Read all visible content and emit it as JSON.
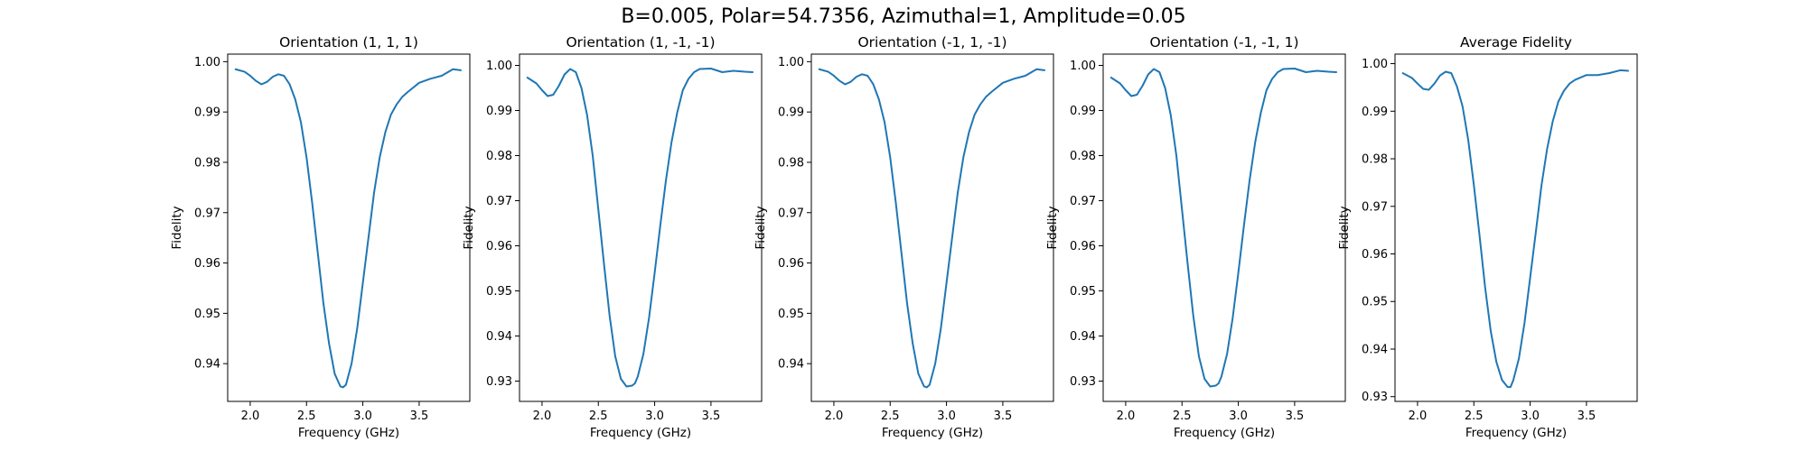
{
  "figure": {
    "suptitle": "B=0.005, Polar=54.7356, Azimuthal=1, Amplitude=0.05",
    "line_color": "#1f77b4"
  },
  "chart_data": [
    {
      "type": "line",
      "title": "Orientation (1, 1, 1)",
      "xlabel": "Frequency (GHz)",
      "ylabel": "Fidelity",
      "xlim": [
        1.8,
        3.95
      ],
      "ylim": [
        0.9325,
        1.0015
      ],
      "xticks": [
        2.0,
        2.5,
        3.0,
        3.5
      ],
      "xticklabels": [
        "2.0",
        "2.5",
        "3.0",
        "3.5"
      ],
      "yticks": [
        0.94,
        0.95,
        0.96,
        0.97,
        0.98,
        0.99,
        1.0
      ],
      "yticklabels": [
        "0.94",
        "0.95",
        "0.96",
        "0.97",
        "0.98",
        "0.99",
        "1.00"
      ],
      "series": [
        {
          "x": [
            1.87,
            1.95,
            2.0,
            2.05,
            2.1,
            2.15,
            2.2,
            2.25,
            2.3,
            2.35,
            2.4,
            2.45,
            2.5,
            2.55,
            2.6,
            2.65,
            2.7,
            2.75,
            2.8,
            2.825,
            2.85,
            2.9,
            2.95,
            3.0,
            3.05,
            3.1,
            3.15,
            3.2,
            3.25,
            3.3,
            3.35,
            3.4,
            3.5,
            3.6,
            3.7,
            3.8,
            3.87
          ],
          "y": [
            0.9985,
            0.998,
            0.9972,
            0.9962,
            0.9955,
            0.996,
            0.997,
            0.9975,
            0.9972,
            0.9955,
            0.9925,
            0.988,
            0.981,
            0.972,
            0.962,
            0.952,
            0.944,
            0.938,
            0.9355,
            0.9353,
            0.9358,
            0.94,
            0.947,
            0.956,
            0.965,
            0.974,
            0.981,
            0.986,
            0.9895,
            0.9915,
            0.993,
            0.994,
            0.9958,
            0.9966,
            0.9972,
            0.9985,
            0.9983
          ]
        }
      ]
    },
    {
      "type": "line",
      "title": "Orientation (1, -1, -1)",
      "xlabel": "Frequency (GHz)",
      "ylabel": "Fidelity",
      "xlim": [
        1.8,
        3.95
      ],
      "ylim": [
        0.9255,
        1.0025
      ],
      "xticks": [
        2.0,
        2.5,
        3.0,
        3.5
      ],
      "xticklabels": [
        "2.0",
        "2.5",
        "3.0",
        "3.5"
      ],
      "yticks": [
        0.93,
        0.94,
        0.95,
        0.96,
        0.97,
        0.98,
        0.99,
        1.0
      ],
      "yticklabels": [
        "0.93",
        "0.94",
        "0.95",
        "0.96",
        "0.97",
        "0.98",
        "0.99",
        "1.00"
      ],
      "series": [
        {
          "x": [
            1.87,
            1.95,
            2.0,
            2.05,
            2.1,
            2.15,
            2.2,
            2.25,
            2.3,
            2.35,
            2.4,
            2.45,
            2.5,
            2.55,
            2.6,
            2.65,
            2.7,
            2.75,
            2.8,
            2.825,
            2.85,
            2.9,
            2.95,
            3.0,
            3.05,
            3.1,
            3.15,
            3.2,
            3.25,
            3.3,
            3.35,
            3.4,
            3.5,
            3.6,
            3.7,
            3.8,
            3.87
          ],
          "y": [
            0.9973,
            0.996,
            0.9945,
            0.9932,
            0.9935,
            0.9955,
            0.998,
            0.9992,
            0.9985,
            0.995,
            0.989,
            0.98,
            0.968,
            0.956,
            0.9445,
            0.9355,
            0.9305,
            0.9288,
            0.929,
            0.9295,
            0.931,
            0.936,
            0.944,
            0.954,
            0.9645,
            0.9745,
            0.983,
            0.9895,
            0.9945,
            0.997,
            0.9985,
            0.9992,
            0.9993,
            0.9985,
            0.9988,
            0.9986,
            0.9985
          ]
        }
      ]
    },
    {
      "type": "line",
      "title": "Orientation (-1, 1, -1)",
      "xlabel": "Frequency (GHz)",
      "ylabel": "Fidelity",
      "xlim": [
        1.8,
        3.95
      ],
      "ylim": [
        0.9325,
        1.0015
      ],
      "xticks": [
        2.0,
        2.5,
        3.0,
        3.5
      ],
      "xticklabels": [
        "2.0",
        "2.5",
        "3.0",
        "3.5"
      ],
      "yticks": [
        0.94,
        0.95,
        0.96,
        0.97,
        0.98,
        0.99,
        1.0
      ],
      "yticklabels": [
        "0.94",
        "0.95",
        "0.96",
        "0.97",
        "0.98",
        "0.99",
        "1.00"
      ],
      "series": [
        {
          "x": [
            1.87,
            1.95,
            2.0,
            2.05,
            2.1,
            2.15,
            2.2,
            2.25,
            2.3,
            2.35,
            2.4,
            2.45,
            2.5,
            2.55,
            2.6,
            2.65,
            2.7,
            2.75,
            2.8,
            2.825,
            2.85,
            2.9,
            2.95,
            3.0,
            3.05,
            3.1,
            3.15,
            3.2,
            3.25,
            3.3,
            3.35,
            3.4,
            3.5,
            3.6,
            3.7,
            3.8,
            3.87
          ],
          "y": [
            0.9985,
            0.998,
            0.9972,
            0.9962,
            0.9955,
            0.996,
            0.997,
            0.9975,
            0.9972,
            0.9955,
            0.9925,
            0.988,
            0.981,
            0.972,
            0.962,
            0.952,
            0.944,
            0.938,
            0.9355,
            0.9353,
            0.9358,
            0.94,
            0.947,
            0.956,
            0.965,
            0.974,
            0.981,
            0.986,
            0.9895,
            0.9915,
            0.993,
            0.994,
            0.9958,
            0.9966,
            0.9972,
            0.9985,
            0.9983
          ]
        }
      ]
    },
    {
      "type": "line",
      "title": "Orientation (-1, -1, 1)",
      "xlabel": "Frequency (GHz)",
      "ylabel": "Fidelity",
      "xlim": [
        1.8,
        3.95
      ],
      "ylim": [
        0.9255,
        1.0025
      ],
      "xticks": [
        2.0,
        2.5,
        3.0,
        3.5
      ],
      "xticklabels": [
        "2.0",
        "2.5",
        "3.0",
        "3.5"
      ],
      "yticks": [
        0.93,
        0.94,
        0.95,
        0.96,
        0.97,
        0.98,
        0.99,
        1.0
      ],
      "yticklabels": [
        "0.93",
        "0.94",
        "0.95",
        "0.96",
        "0.97",
        "0.98",
        "0.99",
        "1.00"
      ],
      "series": [
        {
          "x": [
            1.87,
            1.95,
            2.0,
            2.05,
            2.1,
            2.15,
            2.2,
            2.25,
            2.3,
            2.35,
            2.4,
            2.45,
            2.5,
            2.55,
            2.6,
            2.65,
            2.7,
            2.75,
            2.8,
            2.825,
            2.85,
            2.9,
            2.95,
            3.0,
            3.05,
            3.1,
            3.15,
            3.2,
            3.25,
            3.3,
            3.35,
            3.4,
            3.5,
            3.6,
            3.7,
            3.8,
            3.87
          ],
          "y": [
            0.9973,
            0.996,
            0.9945,
            0.9932,
            0.9935,
            0.9955,
            0.998,
            0.9992,
            0.9985,
            0.995,
            0.989,
            0.98,
            0.968,
            0.956,
            0.9445,
            0.9355,
            0.9305,
            0.9288,
            0.929,
            0.9295,
            0.931,
            0.936,
            0.944,
            0.954,
            0.9645,
            0.9745,
            0.983,
            0.9895,
            0.9945,
            0.997,
            0.9985,
            0.9992,
            0.9993,
            0.9985,
            0.9988,
            0.9986,
            0.9985
          ]
        }
      ]
    },
    {
      "type": "line",
      "title": "Average Fidelity",
      "xlabel": "Frequency (GHz)",
      "ylabel": "Fidelity",
      "xlim": [
        1.8,
        3.95
      ],
      "ylim": [
        0.929,
        1.002
      ],
      "xticks": [
        2.0,
        2.5,
        3.0,
        3.5
      ],
      "xticklabels": [
        "2.0",
        "2.5",
        "3.0",
        "3.5"
      ],
      "yticks": [
        0.93,
        0.94,
        0.95,
        0.96,
        0.97,
        0.98,
        0.99,
        1.0
      ],
      "yticklabels": [
        "0.93",
        "0.94",
        "0.95",
        "0.96",
        "0.97",
        "0.98",
        "0.99",
        "1.00"
      ],
      "series": [
        {
          "x": [
            1.87,
            1.95,
            2.0,
            2.05,
            2.1,
            2.15,
            2.2,
            2.25,
            2.3,
            2.35,
            2.4,
            2.45,
            2.5,
            2.55,
            2.6,
            2.65,
            2.7,
            2.75,
            2.8,
            2.825,
            2.85,
            2.9,
            2.95,
            3.0,
            3.05,
            3.1,
            3.15,
            3.2,
            3.25,
            3.3,
            3.35,
            3.4,
            3.5,
            3.6,
            3.7,
            3.8,
            3.87
          ],
          "y": [
            0.998,
            0.997,
            0.9958,
            0.9947,
            0.9945,
            0.9958,
            0.9975,
            0.9983,
            0.998,
            0.9952,
            0.991,
            0.984,
            0.9745,
            0.964,
            0.953,
            0.9438,
            0.9373,
            0.9335,
            0.932,
            0.932,
            0.9334,
            0.938,
            0.9455,
            0.955,
            0.9645,
            0.9743,
            0.982,
            0.9878,
            0.992,
            0.9943,
            0.9958,
            0.9966,
            0.9976,
            0.9976,
            0.998,
            0.9986,
            0.9985
          ]
        }
      ]
    }
  ]
}
